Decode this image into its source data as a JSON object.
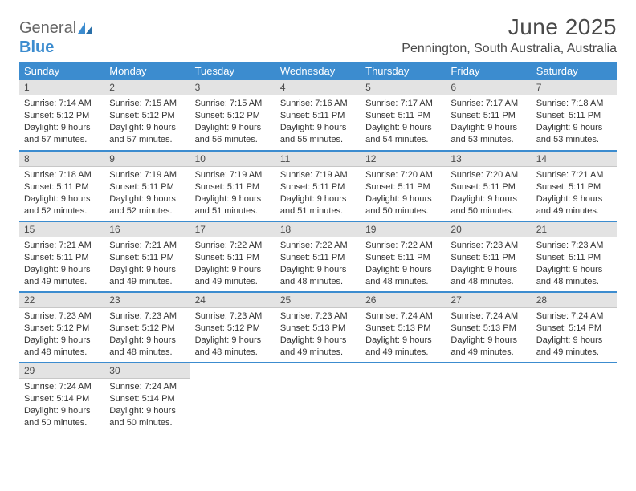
{
  "brand": {
    "left": "General",
    "right": "Blue"
  },
  "title": "June 2025",
  "location": "Pennington, South Australia, Australia",
  "colors": {
    "accent": "#3c8ccf",
    "daynum_bg": "#e3e3e3",
    "text": "#4a4a4a",
    "body_text": "#333333"
  },
  "weekdays": [
    "Sunday",
    "Monday",
    "Tuesday",
    "Wednesday",
    "Thursday",
    "Friday",
    "Saturday"
  ],
  "weeks": [
    [
      {
        "n": "1",
        "sr": "7:14 AM",
        "ss": "5:12 PM",
        "dl": "9 hours and 57 minutes."
      },
      {
        "n": "2",
        "sr": "7:15 AM",
        "ss": "5:12 PM",
        "dl": "9 hours and 57 minutes."
      },
      {
        "n": "3",
        "sr": "7:15 AM",
        "ss": "5:12 PM",
        "dl": "9 hours and 56 minutes."
      },
      {
        "n": "4",
        "sr": "7:16 AM",
        "ss": "5:11 PM",
        "dl": "9 hours and 55 minutes."
      },
      {
        "n": "5",
        "sr": "7:17 AM",
        "ss": "5:11 PM",
        "dl": "9 hours and 54 minutes."
      },
      {
        "n": "6",
        "sr": "7:17 AM",
        "ss": "5:11 PM",
        "dl": "9 hours and 53 minutes."
      },
      {
        "n": "7",
        "sr": "7:18 AM",
        "ss": "5:11 PM",
        "dl": "9 hours and 53 minutes."
      }
    ],
    [
      {
        "n": "8",
        "sr": "7:18 AM",
        "ss": "5:11 PM",
        "dl": "9 hours and 52 minutes."
      },
      {
        "n": "9",
        "sr": "7:19 AM",
        "ss": "5:11 PM",
        "dl": "9 hours and 52 minutes."
      },
      {
        "n": "10",
        "sr": "7:19 AM",
        "ss": "5:11 PM",
        "dl": "9 hours and 51 minutes."
      },
      {
        "n": "11",
        "sr": "7:19 AM",
        "ss": "5:11 PM",
        "dl": "9 hours and 51 minutes."
      },
      {
        "n": "12",
        "sr": "7:20 AM",
        "ss": "5:11 PM",
        "dl": "9 hours and 50 minutes."
      },
      {
        "n": "13",
        "sr": "7:20 AM",
        "ss": "5:11 PM",
        "dl": "9 hours and 50 minutes."
      },
      {
        "n": "14",
        "sr": "7:21 AM",
        "ss": "5:11 PM",
        "dl": "9 hours and 49 minutes."
      }
    ],
    [
      {
        "n": "15",
        "sr": "7:21 AM",
        "ss": "5:11 PM",
        "dl": "9 hours and 49 minutes."
      },
      {
        "n": "16",
        "sr": "7:21 AM",
        "ss": "5:11 PM",
        "dl": "9 hours and 49 minutes."
      },
      {
        "n": "17",
        "sr": "7:22 AM",
        "ss": "5:11 PM",
        "dl": "9 hours and 49 minutes."
      },
      {
        "n": "18",
        "sr": "7:22 AM",
        "ss": "5:11 PM",
        "dl": "9 hours and 48 minutes."
      },
      {
        "n": "19",
        "sr": "7:22 AM",
        "ss": "5:11 PM",
        "dl": "9 hours and 48 minutes."
      },
      {
        "n": "20",
        "sr": "7:23 AM",
        "ss": "5:11 PM",
        "dl": "9 hours and 48 minutes."
      },
      {
        "n": "21",
        "sr": "7:23 AM",
        "ss": "5:11 PM",
        "dl": "9 hours and 48 minutes."
      }
    ],
    [
      {
        "n": "22",
        "sr": "7:23 AM",
        "ss": "5:12 PM",
        "dl": "9 hours and 48 minutes."
      },
      {
        "n": "23",
        "sr": "7:23 AM",
        "ss": "5:12 PM",
        "dl": "9 hours and 48 minutes."
      },
      {
        "n": "24",
        "sr": "7:23 AM",
        "ss": "5:12 PM",
        "dl": "9 hours and 48 minutes."
      },
      {
        "n": "25",
        "sr": "7:23 AM",
        "ss": "5:13 PM",
        "dl": "9 hours and 49 minutes."
      },
      {
        "n": "26",
        "sr": "7:24 AM",
        "ss": "5:13 PM",
        "dl": "9 hours and 49 minutes."
      },
      {
        "n": "27",
        "sr": "7:24 AM",
        "ss": "5:13 PM",
        "dl": "9 hours and 49 minutes."
      },
      {
        "n": "28",
        "sr": "7:24 AM",
        "ss": "5:14 PM",
        "dl": "9 hours and 49 minutes."
      }
    ],
    [
      {
        "n": "29",
        "sr": "7:24 AM",
        "ss": "5:14 PM",
        "dl": "9 hours and 50 minutes."
      },
      {
        "n": "30",
        "sr": "7:24 AM",
        "ss": "5:14 PM",
        "dl": "9 hours and 50 minutes."
      },
      null,
      null,
      null,
      null,
      null
    ]
  ],
  "labels": {
    "sunrise": "Sunrise:",
    "sunset": "Sunset:",
    "daylight": "Daylight:"
  }
}
